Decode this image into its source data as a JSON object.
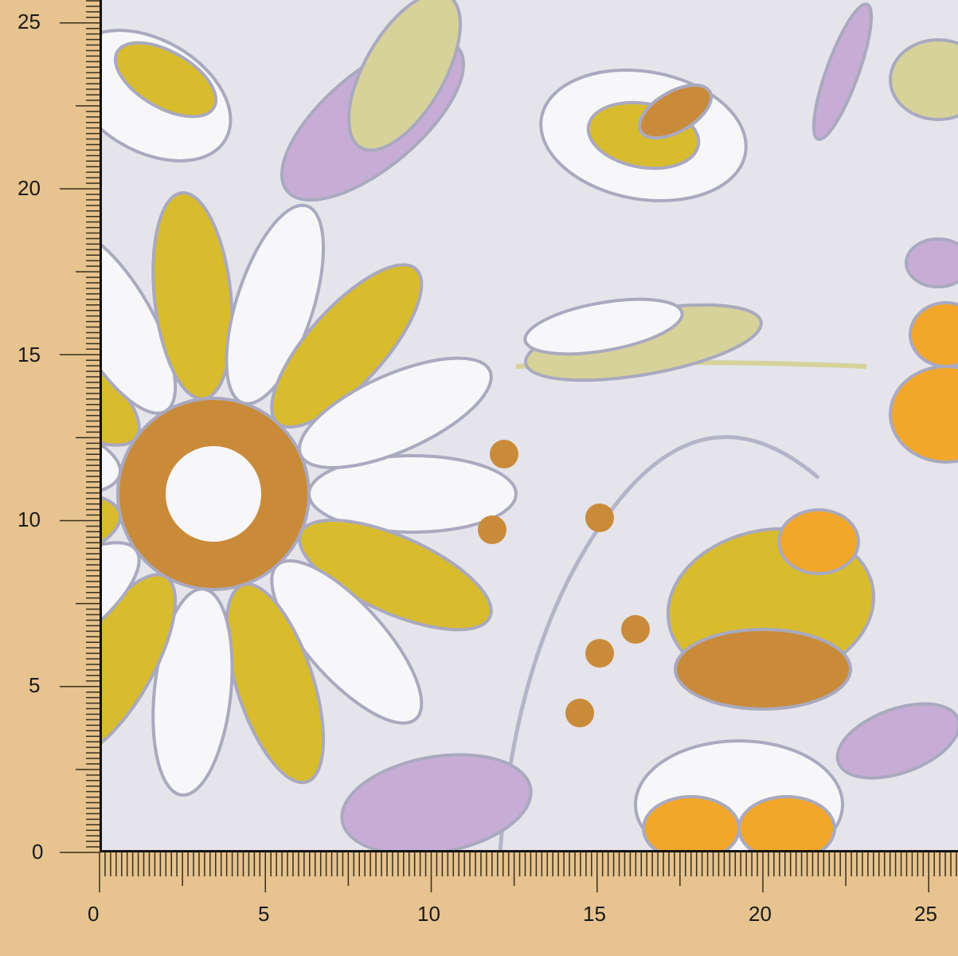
{
  "image": {
    "subject": "sequin-embroidered floral fabric on mesh with measuring rulers",
    "colors": {
      "ruler_bg": "#E6C38F",
      "tick": "#3b2e1a",
      "fabric_bg": "#E4E4EA",
      "yellow": "#D8BC2E",
      "gold": "#C98B3A",
      "orange": "#F2A72A",
      "lilac": "#C7ADD6",
      "white": "#F7F7F9",
      "sage": "#D6D29A",
      "outline": "#A9A9BF"
    }
  },
  "ruler": {
    "vertical_labels": [
      "25",
      "20",
      "15",
      "10",
      "5",
      "0"
    ],
    "horizontal_labels": [
      "0",
      "5",
      "10",
      "15",
      "20",
      "25"
    ]
  }
}
